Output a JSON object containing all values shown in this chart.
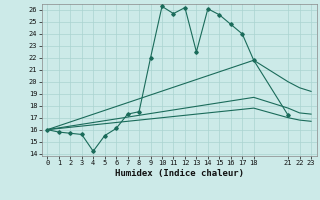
{
  "xlabel": "Humidex (Indice chaleur)",
  "bg_color": "#cceae8",
  "grid_color": "#aad4d0",
  "line_color": "#1a6b5a",
  "xlim": [
    -0.5,
    23.5
  ],
  "ylim": [
    13.8,
    26.5
  ],
  "xtick_positions": [
    0,
    1,
    2,
    3,
    4,
    5,
    6,
    7,
    8,
    9,
    10,
    11,
    12,
    13,
    14,
    15,
    16,
    17,
    18,
    21,
    22,
    23
  ],
  "xtick_labels": [
    "0",
    "1",
    "2",
    "3",
    "4",
    "5",
    "6",
    "7",
    "8",
    "9",
    "10",
    "11",
    "12",
    "13",
    "14",
    "15",
    "16",
    "17",
    "18",
    "21",
    "22",
    "23"
  ],
  "yticks": [
    14,
    15,
    16,
    17,
    18,
    19,
    20,
    21,
    22,
    23,
    24,
    25,
    26
  ],
  "line1_x": [
    0,
    1,
    2,
    3,
    4,
    5,
    6,
    7,
    8,
    9,
    10,
    11,
    12,
    13,
    14,
    15,
    16,
    17,
    18,
    21
  ],
  "line1_y": [
    16,
    15.8,
    15.7,
    15.6,
    14.2,
    15.5,
    16.1,
    17.3,
    17.5,
    22,
    26.3,
    25.7,
    26.2,
    22.5,
    26.1,
    25.6,
    24.8,
    24,
    21.8,
    17.2
  ],
  "line2_x": [
    0,
    18,
    21,
    22,
    23
  ],
  "line2_y": [
    16,
    21.8,
    20.0,
    19.5,
    19.2
  ],
  "line3_x": [
    0,
    18,
    21,
    22,
    23
  ],
  "line3_y": [
    16,
    18.7,
    17.8,
    17.4,
    17.3
  ],
  "line4_x": [
    0,
    18,
    21,
    22,
    23
  ],
  "line4_y": [
    16,
    17.8,
    17.0,
    16.8,
    16.7
  ]
}
